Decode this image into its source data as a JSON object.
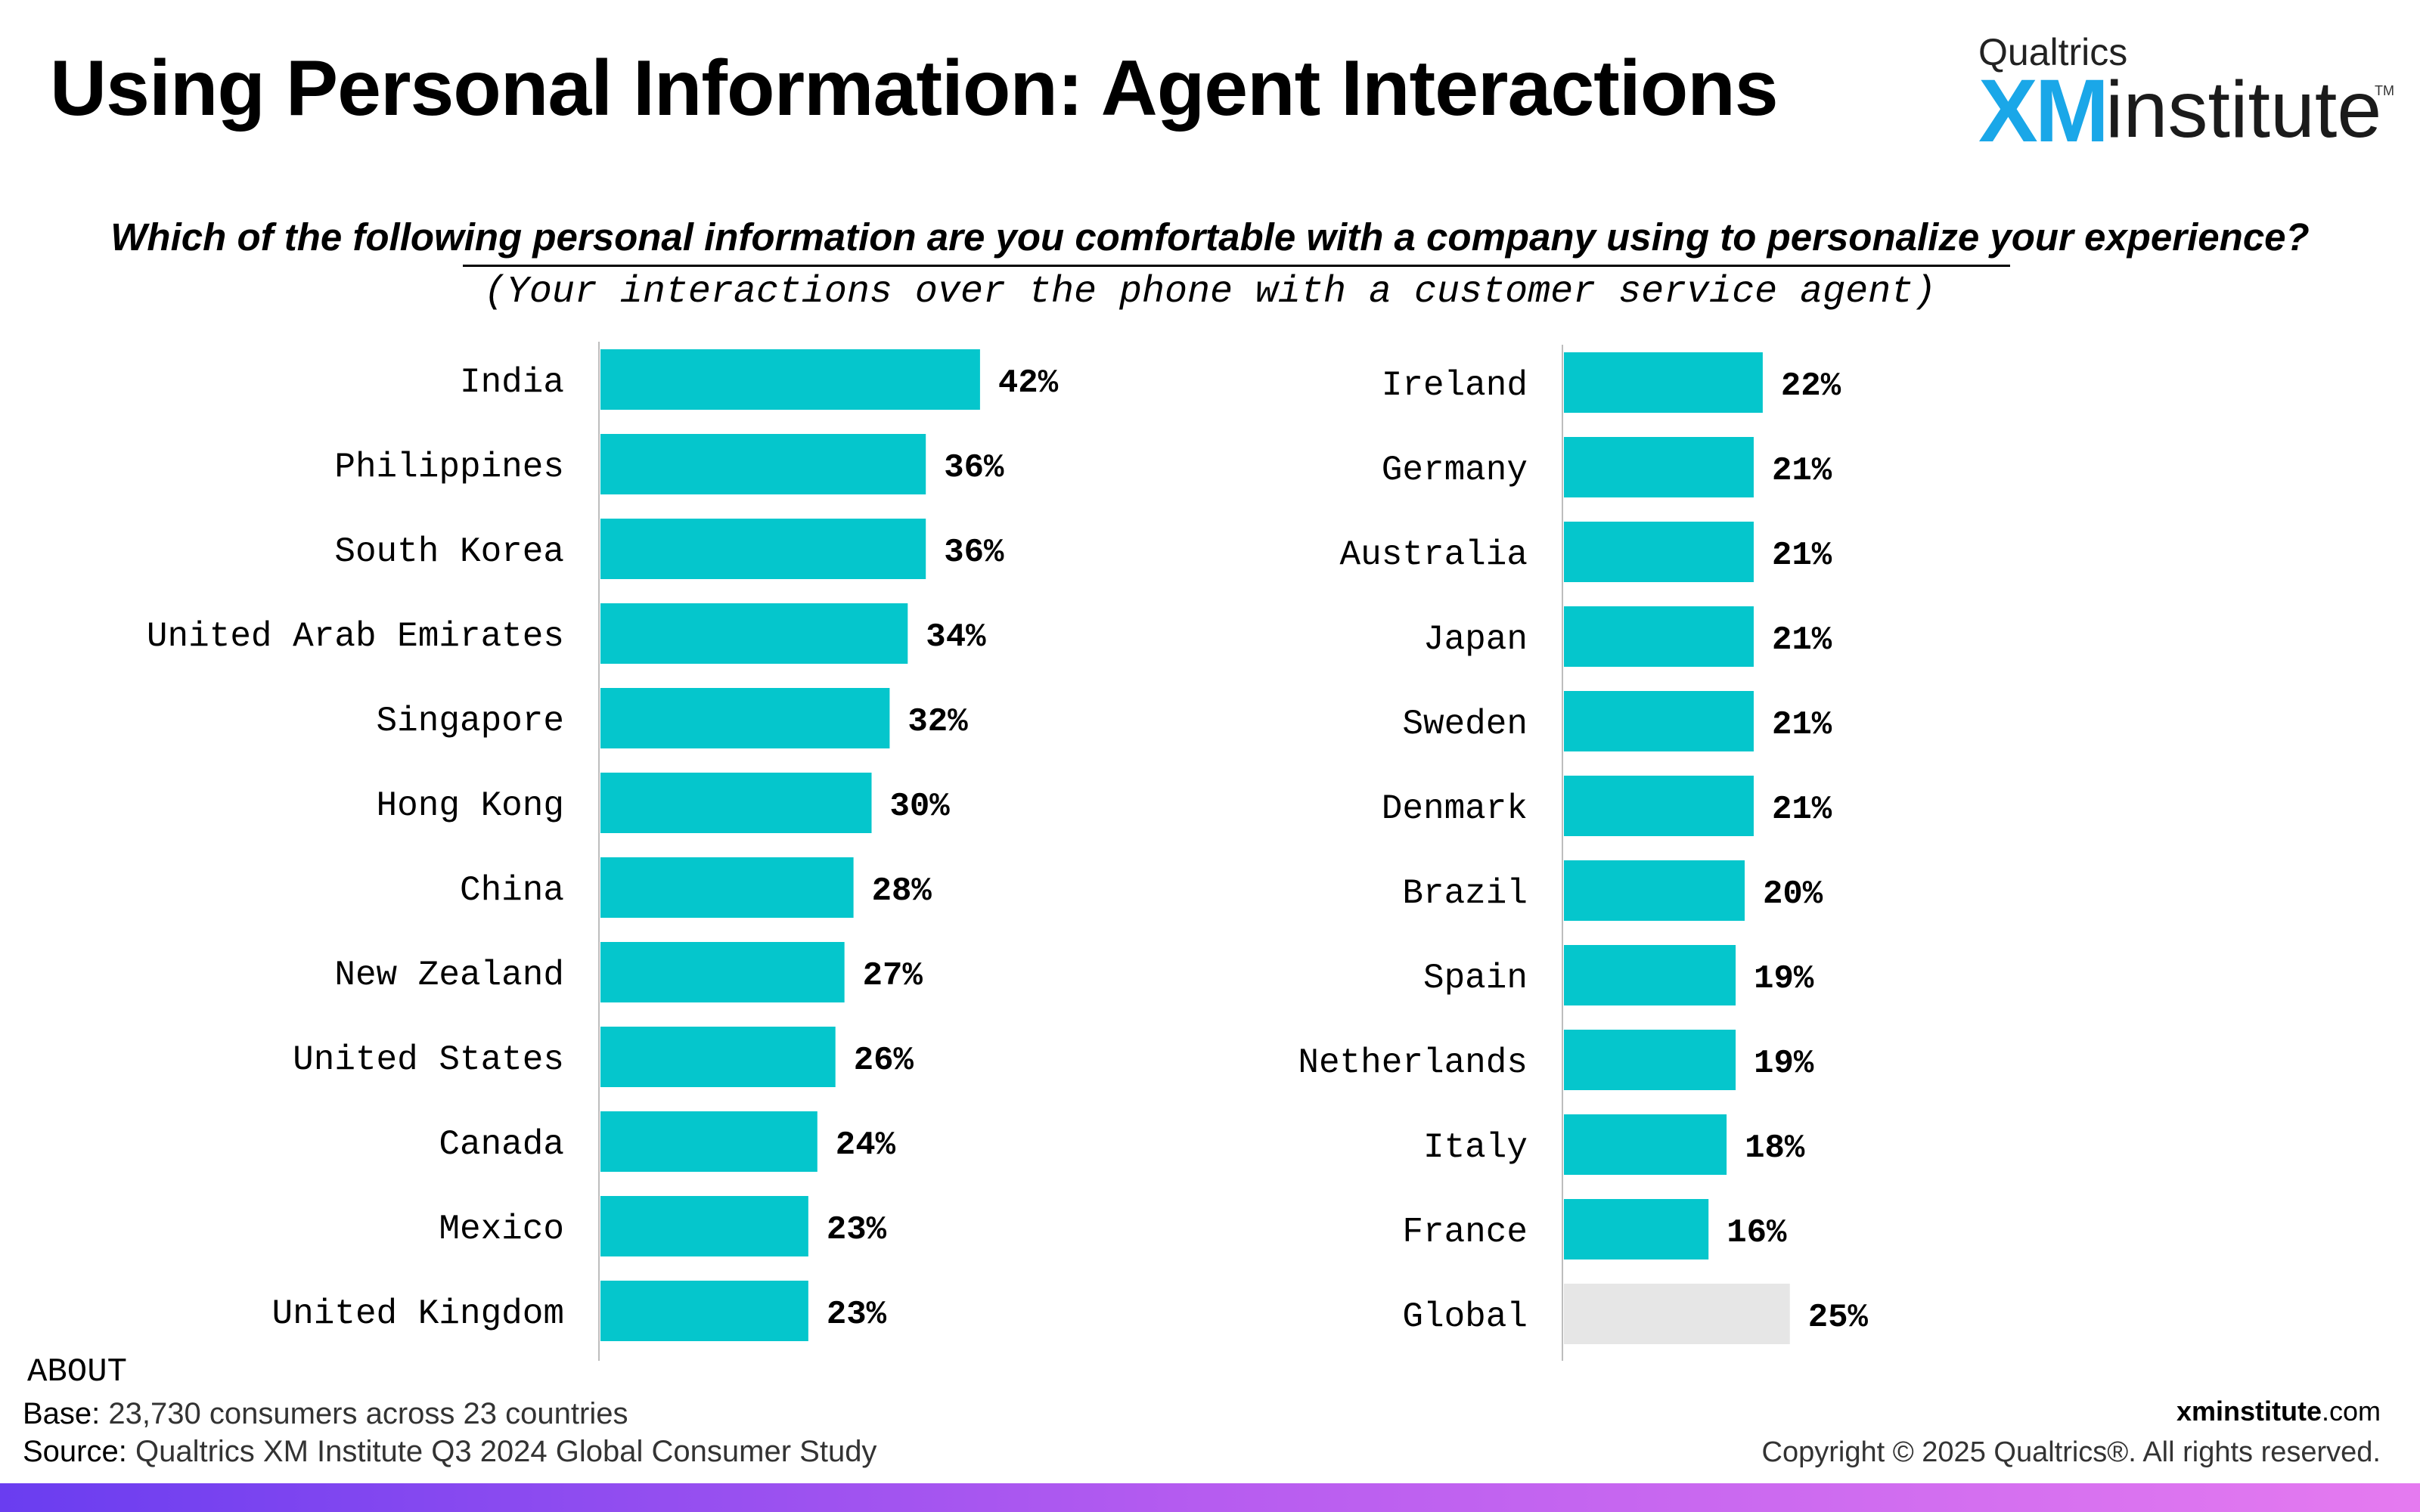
{
  "header": {
    "title": "Using Personal Information: Agent Interactions",
    "logo_brand": "Qualtrics",
    "logo_xm": "XM",
    "logo_word": "institute",
    "logo_tm": "TM"
  },
  "question": "Which of the following personal information are you comfortable with a company using to personalize your experience?",
  "subquestion": "(Your interactions over the phone with a customer service agent)",
  "colors": {
    "bar": "#05c6cc",
    "global_bar": "#e6e6e6",
    "axis": "#bdbdbd"
  },
  "chart_data": [
    {
      "type": "bar",
      "orientation": "horizontal",
      "categories": [
        "India",
        "Philippines",
        "South Korea",
        "United Arab Emirates",
        "Singapore",
        "Hong Kong",
        "China",
        "New Zealand",
        "United States",
        "Canada",
        "Mexico",
        "United Kingdom"
      ],
      "values": [
        42,
        36,
        36,
        34,
        32,
        30,
        28,
        27,
        26,
        24,
        23,
        23
      ],
      "value_labels": [
        "42%",
        "36%",
        "36%",
        "34%",
        "32%",
        "30%",
        "28%",
        "27%",
        "26%",
        "24%",
        "23%",
        "23%"
      ],
      "unit": "%",
      "grid": false
    },
    {
      "type": "bar",
      "orientation": "horizontal",
      "categories": [
        "Ireland",
        "Germany",
        "Australia",
        "Japan",
        "Sweden",
        "Denmark",
        "Brazil",
        "Spain",
        "Netherlands",
        "Italy",
        "France",
        "Global"
      ],
      "values": [
        22,
        21,
        21,
        21,
        21,
        21,
        20,
        19,
        19,
        18,
        16,
        25
      ],
      "value_labels": [
        "22%",
        "21%",
        "21%",
        "21%",
        "21%",
        "21%",
        "20%",
        "19%",
        "19%",
        "18%",
        "16%",
        "25%"
      ],
      "unit": "%",
      "highlight_category": "Global",
      "grid": false
    }
  ],
  "footer": {
    "about_heading": "ABOUT",
    "base_label": "Base:",
    "base_text": "23,730 consumers across 23 countries",
    "source_label": "Source:",
    "source_text": "Qualtrics XM Institute Q3 2024 Global Consumer Study",
    "site_bold": "xminstitute",
    "site_rest": ".com",
    "copyright": "Copyright © 2025 Qualtrics®. All rights reserved."
  }
}
